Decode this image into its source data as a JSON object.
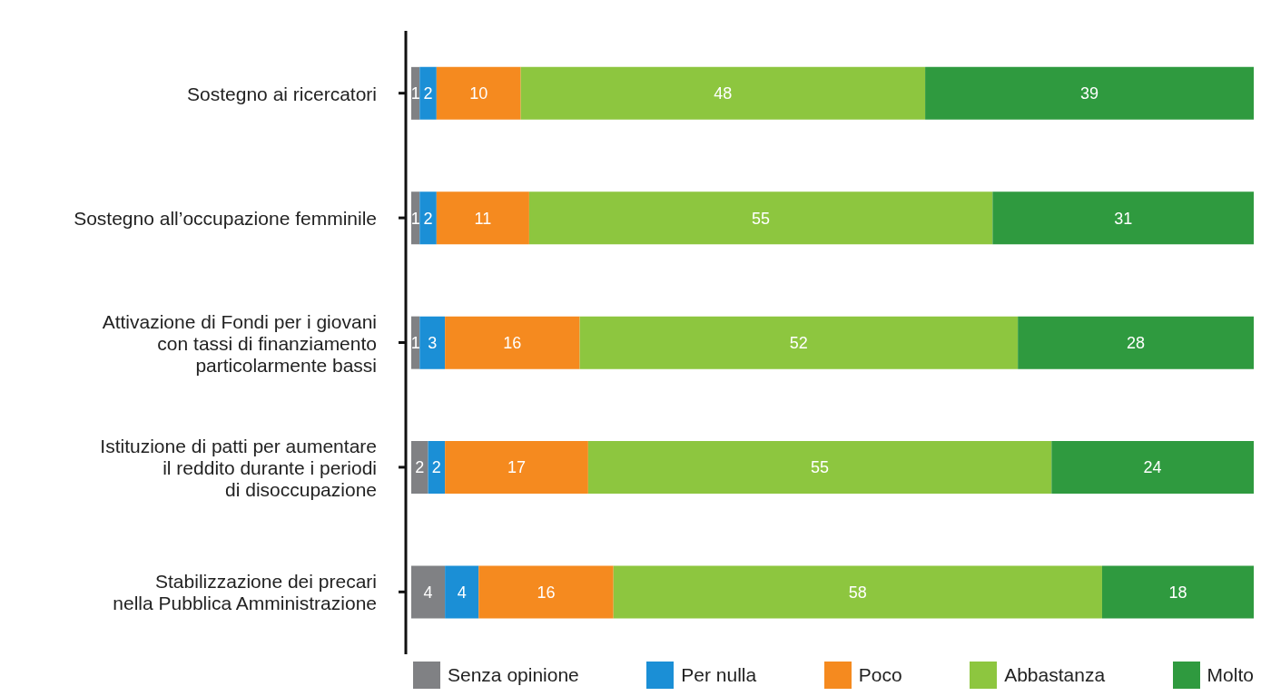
{
  "chart_data": {
    "type": "bar",
    "orientation": "horizontal",
    "stacked": true,
    "data_labels": true,
    "legend": "bottom",
    "grid": false,
    "categories": [
      "Sostegno ai ricercatori",
      "Sostegno all’occupazione femminile",
      "Attivazione di Fondi per i giovani\ncon tassi di finanziamento\nparticolarmente bassi",
      "Istituzione di patti per aumentare\nil reddito durante i periodi\ndi disoccupazione",
      "Stabilizzazione dei precari\nnella Pubblica Amministrazione"
    ],
    "series": [
      {
        "name": "Senza opinione",
        "color": "#808184",
        "values": [
          1,
          1,
          1,
          2,
          4
        ]
      },
      {
        "name": "Per nulla",
        "color": "#1b8fd6",
        "values": [
          2,
          2,
          3,
          2,
          4
        ]
      },
      {
        "name": "Poco",
        "color": "#f58a1f",
        "values": [
          10,
          11,
          16,
          17,
          16
        ]
      },
      {
        "name": "Abbastanza",
        "color": "#8dc63f",
        "values": [
          48,
          55,
          52,
          55,
          58
        ]
      },
      {
        "name": "Molto",
        "color": "#2f9a3f",
        "values": [
          39,
          31,
          28,
          24,
          18
        ]
      }
    ]
  }
}
